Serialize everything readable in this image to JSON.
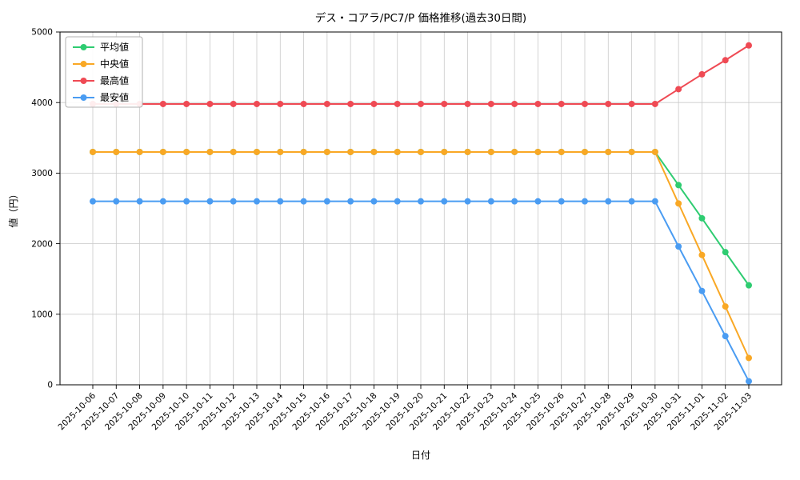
{
  "chart_data": {
    "type": "line",
    "title": "デス・コアラ/PC7/P 価格推移(過去30日間)",
    "xlabel": "日付",
    "ylabel": "値（円）",
    "ylim": [
      0,
      5000
    ],
    "yticks": [
      0,
      1000,
      2000,
      3000,
      4000,
      5000
    ],
    "grid": true,
    "legend_position": "upper left",
    "x": [
      "2025-10-06",
      "2025-10-07",
      "2025-10-08",
      "2025-10-09",
      "2025-10-10",
      "2025-10-11",
      "2025-10-12",
      "2025-10-13",
      "2025-10-14",
      "2025-10-15",
      "2025-10-16",
      "2025-10-17",
      "2025-10-18",
      "2025-10-19",
      "2025-10-20",
      "2025-10-21",
      "2025-10-22",
      "2025-10-23",
      "2025-10-24",
      "2025-10-25",
      "2025-10-26",
      "2025-10-27",
      "2025-10-28",
      "2025-10-29",
      "2025-10-30",
      "2025-10-31",
      "2025-11-01",
      "2025-11-02",
      "2025-11-03"
    ],
    "series": [
      {
        "key": "average",
        "name": "平均値",
        "color": "#2ecc71",
        "values": [
          3300,
          3300,
          3300,
          3300,
          3300,
          3300,
          3300,
          3300,
          3300,
          3300,
          3300,
          3300,
          3300,
          3300,
          3300,
          3300,
          3300,
          3300,
          3300,
          3300,
          3300,
          3300,
          3300,
          3300,
          3300,
          2830,
          2360,
          1880,
          1410
        ]
      },
      {
        "key": "median",
        "name": "中央値",
        "color": "#f9a825",
        "values": [
          3300,
          3300,
          3300,
          3300,
          3300,
          3300,
          3300,
          3300,
          3300,
          3300,
          3300,
          3300,
          3300,
          3300,
          3300,
          3300,
          3300,
          3300,
          3300,
          3300,
          3300,
          3300,
          3300,
          3300,
          3300,
          2570,
          1840,
          1110,
          380
        ]
      },
      {
        "key": "highest",
        "name": "最高値",
        "color": "#ef4a54",
        "values": [
          3980,
          3980,
          3980,
          3980,
          3980,
          3980,
          3980,
          3980,
          3980,
          3980,
          3980,
          3980,
          3980,
          3980,
          3980,
          3980,
          3980,
          3980,
          3980,
          3980,
          3980,
          3980,
          3980,
          3980,
          3980,
          4190,
          4400,
          4600,
          4810
        ]
      },
      {
        "key": "lowest",
        "name": "最安値",
        "color": "#4a9cf2",
        "values": [
          2600,
          2600,
          2600,
          2600,
          2600,
          2600,
          2600,
          2600,
          2600,
          2600,
          2600,
          2600,
          2600,
          2600,
          2600,
          2600,
          2600,
          2600,
          2600,
          2600,
          2600,
          2600,
          2600,
          2600,
          2600,
          1960,
          1330,
          690,
          50
        ]
      }
    ],
    "style": {
      "grid_color": "#c9c9c9",
      "spine_color": "#000000",
      "text_color": "#000000",
      "background": "#ffffff"
    }
  }
}
